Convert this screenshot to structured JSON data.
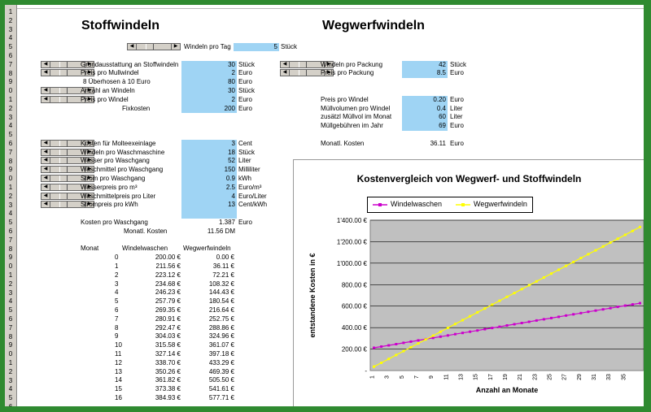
{
  "colors": {
    "blue_cell": "#9fd4f4",
    "plot_bg": "#c0c0c0",
    "series_stoff": "#cc00cc",
    "series_weg": "#ffff00"
  },
  "headings": {
    "left": "Stoffwindeln",
    "right": "Wegwerfwindeln"
  },
  "windeln_pro_tag": {
    "label": "Windeln pro Tag",
    "value": "5",
    "unit": "Stück"
  },
  "left_block1": [
    {
      "label": "Grundausstattung an Stoffwindeln",
      "value": "30",
      "unit": "Stück",
      "scroll": true
    },
    {
      "label": "Preis pro Mullwindel",
      "value": "2",
      "unit": "Euro",
      "scroll": true
    },
    {
      "label": "8 Überhosen à 10 Euro",
      "value": "80",
      "unit": "Euro",
      "scroll": false
    },
    {
      "label": "Anzahl an Windeln",
      "value": "30",
      "unit": "Stück",
      "scroll": true
    },
    {
      "label": "Preis pro Windel",
      "value": "2",
      "unit": "Euro",
      "scroll": true
    },
    {
      "label": "Fixkosten",
      "value": "200",
      "unit": "Euro",
      "scroll": false
    }
  ],
  "left_block2": [
    {
      "label": "Kosten für Molteexeinlage",
      "value": "3",
      "unit": "Cent"
    },
    {
      "label": "Windeln pro Waschmaschine",
      "value": "18",
      "unit": "Stück"
    },
    {
      "label": "Wasser pro Waschgang",
      "value": "52",
      "unit": "Liter"
    },
    {
      "label": "Waschmittel pro Waschgang",
      "value": "150",
      "unit": "Milliliter"
    },
    {
      "label": "Strom pro Waschgang",
      "value": "0.9",
      "unit": "kWh"
    },
    {
      "label": "Wasserpreis pro m³",
      "value": "2.5",
      "unit": "Euro/m³"
    },
    {
      "label": "Waschmittelpreis pro Liter",
      "value": "4",
      "unit": "Euro/Liter"
    },
    {
      "label": "Strompreis pro kWh",
      "value": "13",
      "unit": "Cent/kWh"
    }
  ],
  "kosten_pro_waschgang": {
    "label": "Kosten pro Waschgang",
    "value": "1.387",
    "unit": "Euro"
  },
  "monatl_kosten_left": {
    "label": "Monatl. Kosten",
    "value": "11.56 DM"
  },
  "right_block1": [
    {
      "label": "Windeln pro Packung",
      "value": "42",
      "unit": "Stück"
    },
    {
      "label": "Preis pro Packung",
      "value": "8.5",
      "unit": "Euro"
    }
  ],
  "right_block2": [
    {
      "label": "Preis pro Windel",
      "value": "0.20",
      "unit": "Euro"
    },
    {
      "label": "Müllvolumen pro Windel",
      "value": "0.4",
      "unit": "Liter"
    },
    {
      "label": "zusätzl Müllvol im Monat",
      "value": "60",
      "unit": "Liter"
    },
    {
      "label": "Müllgebühren im Jahr",
      "value": "69",
      "unit": "Euro"
    }
  ],
  "monatl_kosten_right": {
    "label": "Monatl. Kosten",
    "value": "36.11",
    "unit": "Euro"
  },
  "table": {
    "headers": [
      "Monat",
      "Windelwaschen",
      "Wegwerfwindeln"
    ],
    "rows": [
      [
        "0",
        "200.00 €",
        "0.00 €"
      ],
      [
        "1",
        "211.56 €",
        "36.11 €"
      ],
      [
        "2",
        "223.12 €",
        "72.21 €"
      ],
      [
        "3",
        "234.68 €",
        "108.32 €"
      ],
      [
        "4",
        "246.23 €",
        "144.43 €"
      ],
      [
        "5",
        "257.79 €",
        "180.54 €"
      ],
      [
        "6",
        "269.35 €",
        "216.64 €"
      ],
      [
        "7",
        "280.91 €",
        "252.75 €"
      ],
      [
        "8",
        "292.47 €",
        "288.86 €"
      ],
      [
        "9",
        "304.03 €",
        "324.96 €"
      ],
      [
        "10",
        "315.58 €",
        "361.07 €"
      ],
      [
        "11",
        "327.14 €",
        "397.18 €"
      ],
      [
        "12",
        "338.70 €",
        "433.29 €"
      ],
      [
        "13",
        "350.26 €",
        "469.39 €"
      ],
      [
        "14",
        "361.82 €",
        "505.50 €"
      ],
      [
        "15",
        "373.38 €",
        "541.61 €"
      ],
      [
        "16",
        "384.93 €",
        "577.71 €"
      ]
    ]
  },
  "chart_data": {
    "type": "line",
    "title": "Kostenvergleich von Wegwerf- und Stoffwindeln",
    "xlabel": "Anzahl an Monate",
    "ylabel": "entstandene Kosten in €",
    "ylim": [
      0,
      1400
    ],
    "yticks": [
      "-",
      "200.00 €",
      "400.00 €",
      "600.00 €",
      "800.00 €",
      "1'000.00 €",
      "1'200.00 €",
      "1'400.00 €"
    ],
    "xticks": [
      "1",
      "3",
      "5",
      "7",
      "9",
      "11",
      "13",
      "15",
      "17",
      "19",
      "21",
      "23",
      "25",
      "27",
      "29",
      "31",
      "33",
      "35"
    ],
    "legend": "top-left",
    "grid": true,
    "series": [
      {
        "name": "Windelwaschen",
        "start": 211.56,
        "step": 11.56,
        "count": 37
      },
      {
        "name": "Wegwerfwindeln",
        "start": 36.11,
        "step": 36.11,
        "count": 37
      }
    ]
  }
}
